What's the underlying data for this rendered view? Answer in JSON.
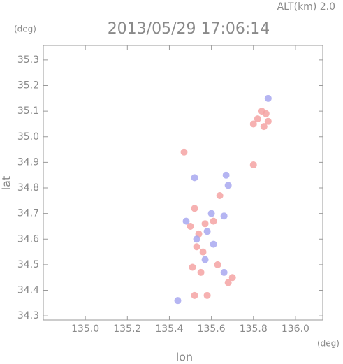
{
  "chart_data": {
    "type": "scatter",
    "title": "2013/05/29 17:06:14",
    "annotation": "ALT(km) 2.0",
    "y_unit": "(deg)",
    "x_unit": "(deg)",
    "x_label": "lon",
    "y_label": "lat",
    "xlim": [
      134.8,
      136.13
    ],
    "ylim": [
      34.284,
      35.357
    ],
    "xticks": [
      {
        "value": 135,
        "label": "135.0"
      },
      135.2,
      135.4,
      135.6,
      135.8,
      {
        "value": 136,
        "label": "136.0"
      }
    ],
    "yticks": [
      35.3,
      35.2,
      35.1,
      {
        "value": 35,
        "label": "35.0"
      },
      34.9,
      34.8,
      34.7,
      34.6,
      34.5,
      34.4,
      34.3
    ],
    "series": [
      {
        "color": "#f5a3a3",
        "x": [
          135.82,
          135.85,
          135.84,
          135.87,
          135.8,
          135.86,
          135.52,
          135.5,
          135.54,
          135.57,
          135.53,
          135.56,
          135.51,
          135.55,
          135.63,
          135.68,
          135.52,
          135.58,
          135.64,
          135.61,
          135.47,
          135.8,
          135.7
        ],
        "y": [
          35.07,
          35.04,
          35.1,
          35.06,
          35.05,
          35.09,
          34.72,
          34.65,
          34.62,
          34.66,
          34.57,
          34.55,
          34.49,
          34.47,
          34.5,
          34.43,
          34.38,
          34.38,
          34.77,
          34.67,
          34.94,
          34.89,
          34.45
        ]
      },
      {
        "color": "#a8a8f0",
        "x": [
          135.87,
          135.48,
          135.53,
          135.58,
          135.6,
          135.66,
          135.52,
          135.68,
          135.57,
          135.66,
          135.44,
          135.67,
          135.61
        ],
        "y": [
          35.15,
          34.67,
          34.6,
          34.63,
          34.7,
          34.69,
          34.84,
          34.81,
          34.52,
          34.47,
          34.36,
          34.85,
          34.58
        ]
      }
    ]
  }
}
